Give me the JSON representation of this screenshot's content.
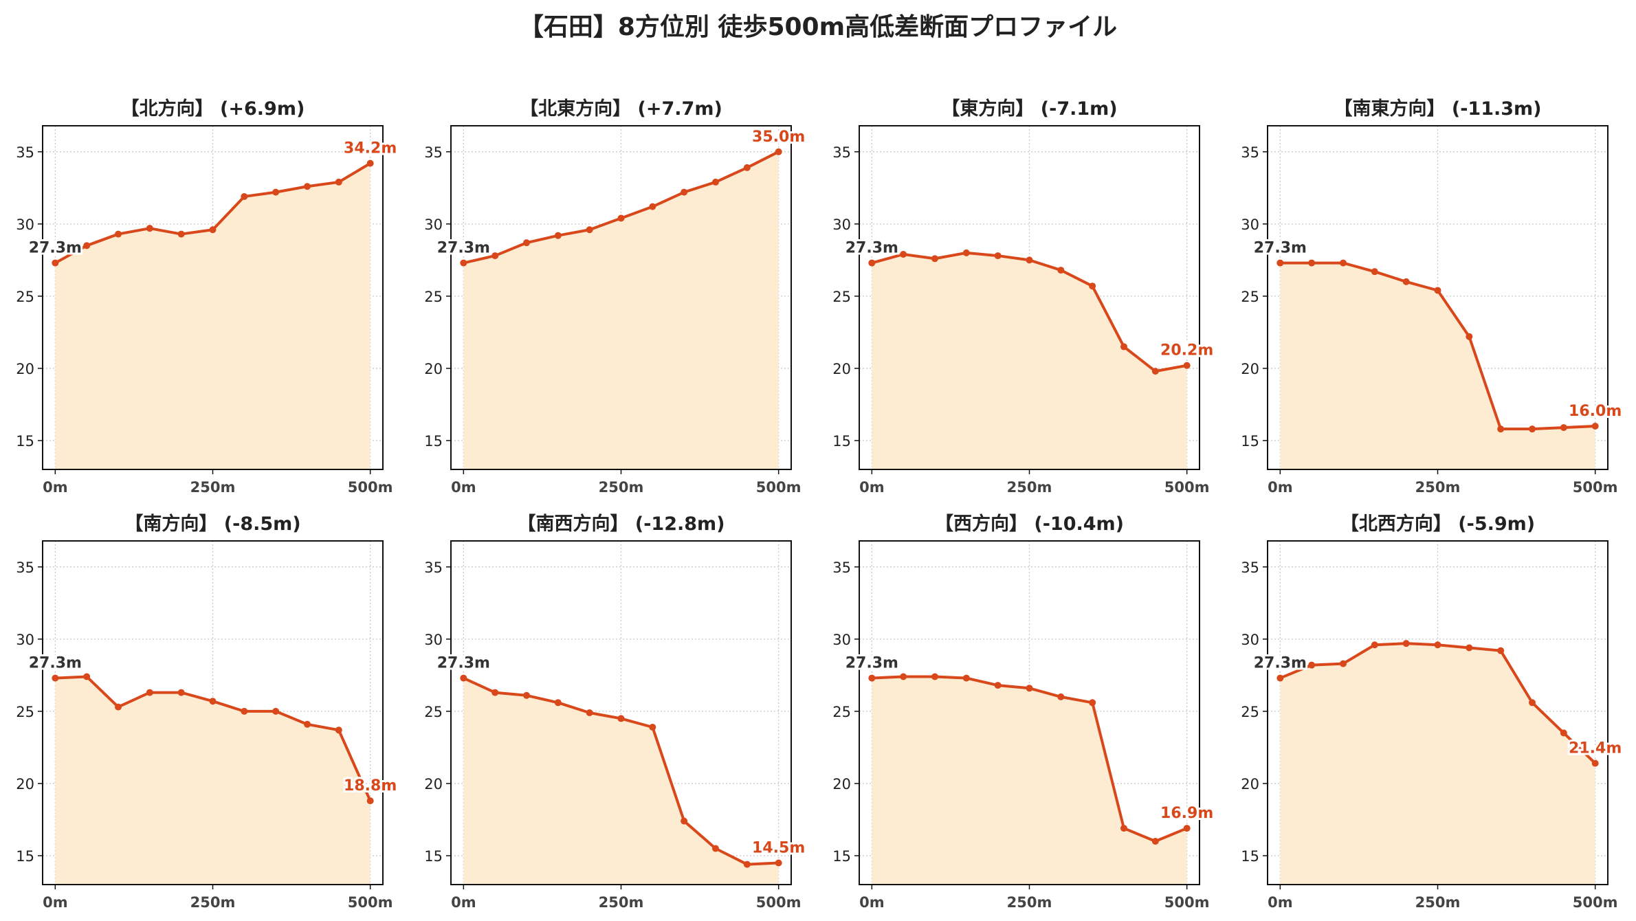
{
  "title": "【石田】8方位別 徒歩500m高低差断面プロファイル",
  "colors": {
    "line": "#d8481a",
    "fill": "#fdebd2",
    "start_label": "#333333",
    "end_label": "#d8481a",
    "grid": "#c8c8c8"
  },
  "chart_data": [
    {
      "type": "area",
      "title": "【北方向】 (+6.9m)",
      "x": [
        0,
        50,
        100,
        150,
        200,
        250,
        300,
        350,
        400,
        450,
        500
      ],
      "y": [
        27.3,
        28.5,
        29.3,
        29.7,
        29.3,
        29.6,
        31.9,
        32.2,
        32.6,
        32.9,
        34.2
      ],
      "start_label": "27.3m",
      "end_label": "34.2m",
      "xticks": [
        "0m",
        "250m",
        "500m"
      ],
      "xtick_values": [
        0,
        250,
        500
      ],
      "yticks": [
        15,
        20,
        25,
        30,
        35
      ],
      "ylim": [
        13,
        36.8
      ],
      "xlim": [
        -20,
        520
      ],
      "grid": true
    },
    {
      "type": "area",
      "title": "【北東方向】 (+7.7m)",
      "x": [
        0,
        50,
        100,
        150,
        200,
        250,
        300,
        350,
        400,
        450,
        500
      ],
      "y": [
        27.3,
        27.8,
        28.7,
        29.2,
        29.6,
        30.4,
        31.2,
        32.2,
        32.9,
        33.9,
        35.0
      ],
      "start_label": "27.3m",
      "end_label": "35.0m",
      "xticks": [
        "0m",
        "250m",
        "500m"
      ],
      "xtick_values": [
        0,
        250,
        500
      ],
      "yticks": [
        15,
        20,
        25,
        30,
        35
      ],
      "ylim": [
        13,
        36.8
      ],
      "xlim": [
        -20,
        520
      ],
      "grid": true
    },
    {
      "type": "area",
      "title": "【東方向】 (-7.1m)",
      "x": [
        0,
        50,
        100,
        150,
        200,
        250,
        300,
        350,
        400,
        450,
        500
      ],
      "y": [
        27.3,
        27.9,
        27.6,
        28.0,
        27.8,
        27.5,
        26.8,
        25.7,
        21.5,
        19.8,
        20.2
      ],
      "start_label": "27.3m",
      "end_label": "20.2m",
      "xticks": [
        "0m",
        "250m",
        "500m"
      ],
      "xtick_values": [
        0,
        250,
        500
      ],
      "yticks": [
        15,
        20,
        25,
        30,
        35
      ],
      "ylim": [
        13,
        36.8
      ],
      "xlim": [
        -20,
        520
      ],
      "grid": true
    },
    {
      "type": "area",
      "title": "【南東方向】 (-11.3m)",
      "x": [
        0,
        50,
        100,
        150,
        200,
        250,
        300,
        350,
        400,
        450,
        500
      ],
      "y": [
        27.3,
        27.3,
        27.3,
        26.7,
        26.0,
        25.4,
        22.2,
        15.8,
        15.8,
        15.9,
        16.0
      ],
      "start_label": "27.3m",
      "end_label": "16.0m",
      "xticks": [
        "0m",
        "250m",
        "500m"
      ],
      "xtick_values": [
        0,
        250,
        500
      ],
      "yticks": [
        15,
        20,
        25,
        30,
        35
      ],
      "ylim": [
        13,
        36.8
      ],
      "xlim": [
        -20,
        520
      ],
      "grid": true
    },
    {
      "type": "area",
      "title": "【南方向】 (-8.5m)",
      "x": [
        0,
        50,
        100,
        150,
        200,
        250,
        300,
        350,
        400,
        450,
        500
      ],
      "y": [
        27.3,
        27.4,
        25.3,
        26.3,
        26.3,
        25.7,
        25.0,
        25.0,
        24.1,
        23.7,
        18.8
      ],
      "start_label": "27.3m",
      "end_label": "18.8m",
      "xticks": [
        "0m",
        "250m",
        "500m"
      ],
      "xtick_values": [
        0,
        250,
        500
      ],
      "yticks": [
        15,
        20,
        25,
        30,
        35
      ],
      "ylim": [
        13,
        36.8
      ],
      "xlim": [
        -20,
        520
      ],
      "grid": true
    },
    {
      "type": "area",
      "title": "【南西方向】 (-12.8m)",
      "x": [
        0,
        50,
        100,
        150,
        200,
        250,
        300,
        350,
        400,
        450,
        500
      ],
      "y": [
        27.3,
        26.3,
        26.1,
        25.6,
        24.9,
        24.5,
        23.9,
        17.4,
        15.5,
        14.4,
        14.5
      ],
      "start_label": "27.3m",
      "end_label": "14.5m",
      "xticks": [
        "0m",
        "250m",
        "500m"
      ],
      "xtick_values": [
        0,
        250,
        500
      ],
      "yticks": [
        15,
        20,
        25,
        30,
        35
      ],
      "ylim": [
        13,
        36.8
      ],
      "xlim": [
        -20,
        520
      ],
      "grid": true
    },
    {
      "type": "area",
      "title": "【西方向】 (-10.4m)",
      "x": [
        0,
        50,
        100,
        150,
        200,
        250,
        300,
        350,
        400,
        450,
        500
      ],
      "y": [
        27.3,
        27.4,
        27.4,
        27.3,
        26.8,
        26.6,
        26.0,
        25.6,
        16.9,
        16.0,
        16.9
      ],
      "start_label": "27.3m",
      "end_label": "16.9m",
      "xticks": [
        "0m",
        "250m",
        "500m"
      ],
      "xtick_values": [
        0,
        250,
        500
      ],
      "yticks": [
        15,
        20,
        25,
        30,
        35
      ],
      "ylim": [
        13,
        36.8
      ],
      "xlim": [
        -20,
        520
      ],
      "grid": true
    },
    {
      "type": "area",
      "title": "【北西方向】 (-5.9m)",
      "x": [
        0,
        50,
        100,
        150,
        200,
        250,
        300,
        350,
        400,
        450,
        500
      ],
      "y": [
        27.3,
        28.2,
        28.3,
        29.6,
        29.7,
        29.6,
        29.4,
        29.2,
        25.6,
        23.5,
        21.4
      ],
      "start_label": "27.3m",
      "end_label": "21.4m",
      "xticks": [
        "0m",
        "250m",
        "500m"
      ],
      "xtick_values": [
        0,
        250,
        500
      ],
      "yticks": [
        15,
        20,
        25,
        30,
        35
      ],
      "ylim": [
        13,
        36.8
      ],
      "xlim": [
        -20,
        520
      ],
      "grid": true
    }
  ]
}
